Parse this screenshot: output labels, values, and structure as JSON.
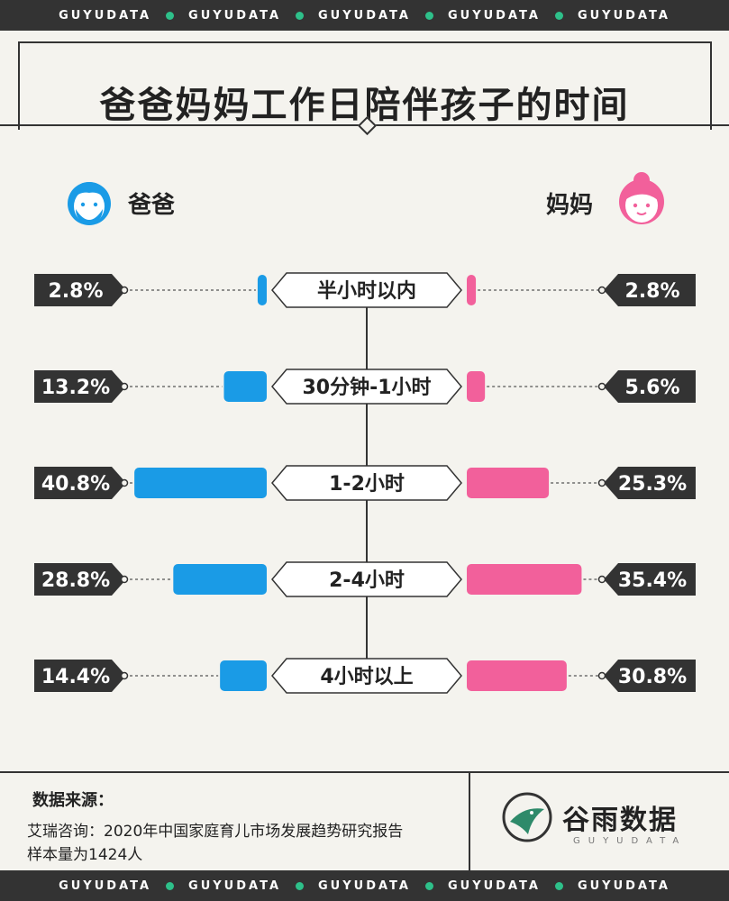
{
  "band": {
    "text": "GUYUDATA"
  },
  "title": "爸爸妈妈工作日陪伴孩子的时间",
  "dad_label": "爸爸",
  "mom_label": "妈妈",
  "colors": {
    "dad": "#1a9be6",
    "mom": "#f2609b",
    "dark": "#333333",
    "bg": "#f4f3ee"
  },
  "chart_data": {
    "type": "bar",
    "categories": [
      "半小时以内",
      "30分钟-1小时",
      "1-2小时",
      "2-4小时",
      "4小时以上"
    ],
    "series": [
      {
        "name": "爸爸",
        "values": [
          2.8,
          13.2,
          40.8,
          28.8,
          14.4
        ],
        "labels": [
          "2.8%",
          "13.2%",
          "40.8%",
          "28.8%",
          "14.4%"
        ]
      },
      {
        "name": "妈妈",
        "values": [
          2.8,
          5.6,
          25.3,
          35.4,
          30.8
        ],
        "labels": [
          "2.8%",
          "5.6%",
          "25.3%",
          "35.4%",
          "30.8%"
        ]
      }
    ],
    "unit": "%"
  },
  "source": {
    "title": "数据来源：",
    "line1": "艾瑞咨询：2020年中国家庭育儿市场发展趋势研究报告",
    "line2": "样本量为1424人"
  },
  "brand": {
    "name": "谷雨数据",
    "sub": "GUYUDATA"
  }
}
